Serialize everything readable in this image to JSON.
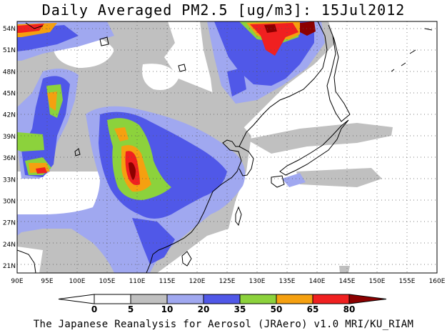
{
  "map": {
    "title": "Daily Averaged PM2.5 [ug/m3]: 15Jul2012",
    "footer": "The Japanese Reanalysis for Aerosol (JRAero) v1.0 MRI/KU_RIAM",
    "extent": {
      "lon": [
        90,
        160
      ],
      "lat": [
        20,
        55
      ]
    },
    "lon_labels": [
      "90E",
      "95E",
      "100E",
      "105E",
      "110E",
      "115E",
      "120E",
      "125E",
      "130E",
      "135E",
      "140E",
      "145E",
      "150E",
      "155E",
      "160E"
    ],
    "lat_labels": [
      "54N",
      "51N",
      "48N",
      "45N",
      "42N",
      "39N",
      "36N",
      "33N",
      "30N",
      "27N",
      "24N",
      "21N"
    ]
  },
  "legend": {
    "levels": [
      "0",
      "5",
      "10",
      "20",
      "35",
      "50",
      "65",
      "80"
    ],
    "colors": {
      "c0": "#ffffff",
      "c5": "#c0c0c0",
      "c10": "#a0a8f0",
      "c20": "#5058e8",
      "c35": "#8cd23c",
      "c50": "#f5a010",
      "c65": "#f02020",
      "c80": "#8c0000"
    }
  }
}
